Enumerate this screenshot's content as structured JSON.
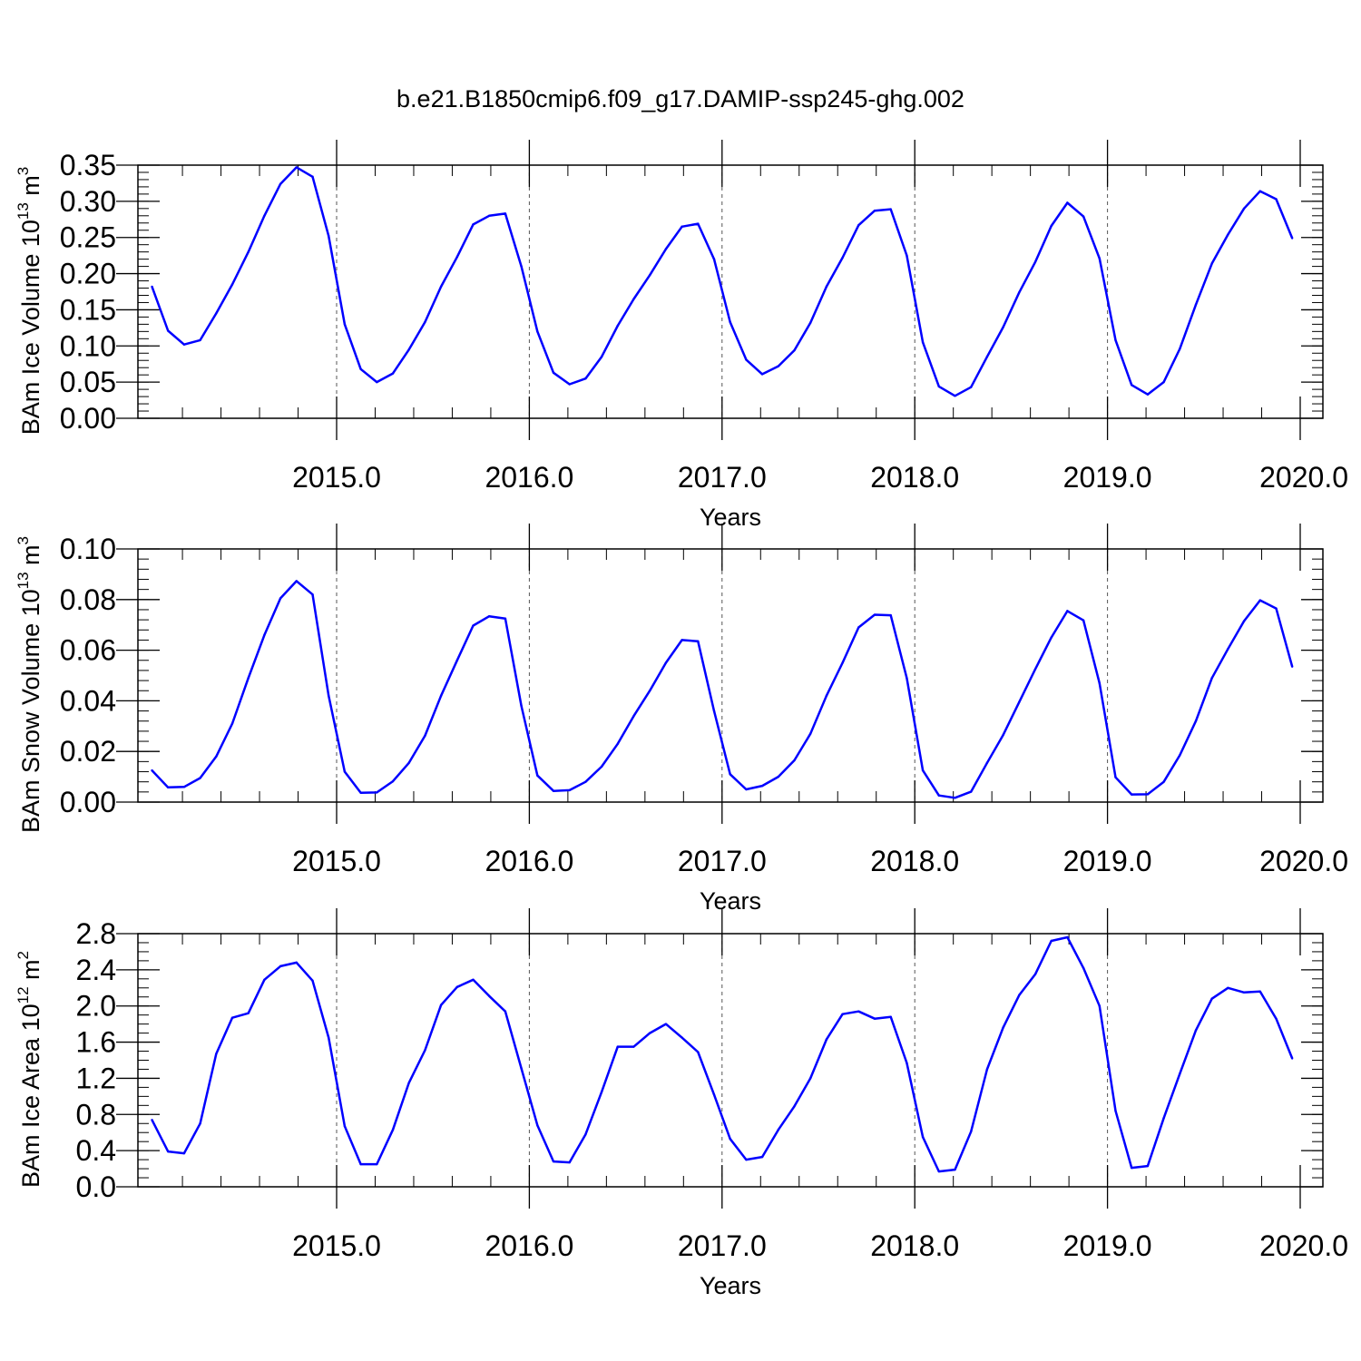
{
  "title": "b.e21.B1850cmip6.f09_g17.DAMIP-ssp245-ghg.002",
  "colors": {
    "series": "#0000ff",
    "axes": "#000000"
  },
  "chart_data": [
    {
      "type": "line",
      "ylabel_main": "BAm Ice Volume 10",
      "ylabel_exp": "13",
      "ylabel_unit": "m",
      "ylabel_unit_exp": "3",
      "xlabel": "Years",
      "xlim": [
        2014.04,
        2020.0
      ],
      "ylim": [
        0.0,
        0.35
      ],
      "yticks": [
        0.0,
        0.05,
        0.1,
        0.15,
        0.2,
        0.25,
        0.3,
        0.35
      ],
      "ytick_labels": [
        "0.00",
        "0.05",
        "0.10",
        "0.15",
        "0.20",
        "0.25",
        "0.30",
        "0.35"
      ],
      "yminor_step": 0.01,
      "xticks": [
        2015,
        2016,
        2017,
        2018,
        2019,
        2020
      ],
      "xtick_labels": [
        "2015.0",
        "2016.0",
        "2017.0",
        "2018.0",
        "2019.0",
        "2020.0"
      ],
      "grid": "vertical-dashed",
      "x_start": 2014.042,
      "x_step": 0.08333,
      "values": [
        0.182,
        0.121,
        0.102,
        0.108,
        0.145,
        0.185,
        0.23,
        0.28,
        0.324,
        0.347,
        0.334,
        0.252,
        0.13,
        0.068,
        0.05,
        0.062,
        0.095,
        0.133,
        0.182,
        0.223,
        0.268,
        0.28,
        0.283,
        0.21,
        0.12,
        0.063,
        0.047,
        0.055,
        0.085,
        0.128,
        0.165,
        0.198,
        0.234,
        0.265,
        0.269,
        0.22,
        0.133,
        0.081,
        0.061,
        0.072,
        0.094,
        0.132,
        0.182,
        0.222,
        0.267,
        0.287,
        0.289,
        0.225,
        0.105,
        0.044,
        0.031,
        0.043,
        0.085,
        0.126,
        0.174,
        0.216,
        0.266,
        0.298,
        0.279,
        0.221,
        0.108,
        0.046,
        0.033,
        0.05,
        0.096,
        0.157,
        0.214,
        0.254,
        0.29,
        0.314,
        0.303,
        0.249
      ]
    },
    {
      "type": "line",
      "ylabel_main": "BAm Snow Volume 10",
      "ylabel_exp": "13",
      "ylabel_unit": "m",
      "ylabel_unit_exp": "3",
      "xlabel": "Years",
      "xlim": [
        2014.04,
        2020.0
      ],
      "ylim": [
        0.0,
        0.1
      ],
      "yticks": [
        0.0,
        0.02,
        0.04,
        0.06,
        0.08,
        0.1
      ],
      "ytick_labels": [
        "0.00",
        "0.02",
        "0.04",
        "0.06",
        "0.08",
        "0.10"
      ],
      "yminor_step": 0.004,
      "xticks": [
        2015,
        2016,
        2017,
        2018,
        2019,
        2020
      ],
      "xtick_labels": [
        "2015.0",
        "2016.0",
        "2017.0",
        "2018.0",
        "2019.0",
        "2020.0"
      ],
      "grid": "vertical-dashed",
      "x_start": 2014.042,
      "x_step": 0.08333,
      "values": [
        0.0125,
        0.0058,
        0.006,
        0.0095,
        0.018,
        0.031,
        0.049,
        0.066,
        0.0805,
        0.0873,
        0.082,
        0.042,
        0.012,
        0.0037,
        0.0038,
        0.0082,
        0.0155,
        0.0262,
        0.042,
        0.056,
        0.0697,
        0.0734,
        0.0725,
        0.038,
        0.0105,
        0.0044,
        0.0047,
        0.008,
        0.014,
        0.023,
        0.034,
        0.044,
        0.055,
        0.064,
        0.0635,
        0.036,
        0.011,
        0.005,
        0.0064,
        0.01,
        0.0165,
        0.027,
        0.042,
        0.055,
        0.069,
        0.074,
        0.0738,
        0.049,
        0.0125,
        0.0026,
        0.0017,
        0.0041,
        0.0155,
        0.0265,
        0.0395,
        0.0525,
        0.065,
        0.0755,
        0.0718,
        0.047,
        0.0098,
        0.003,
        0.0031,
        0.008,
        0.0185,
        0.032,
        0.049,
        0.0605,
        0.0715,
        0.0797,
        0.0765,
        0.0535
      ]
    },
    {
      "type": "line",
      "ylabel_main": "BAm Ice Area 10",
      "ylabel_exp": "12",
      "ylabel_unit": "m",
      "ylabel_unit_exp": "2",
      "xlabel": "Years",
      "xlim": [
        2014.04,
        2020.0
      ],
      "ylim": [
        0.0,
        2.8
      ],
      "yticks": [
        0.0,
        0.4,
        0.8,
        1.2,
        1.6,
        2.0,
        2.4,
        2.8
      ],
      "ytick_labels": [
        "0.0",
        "0.4",
        "0.8",
        "1.2",
        "1.6",
        "2.0",
        "2.4",
        "2.8"
      ],
      "yminor_step": 0.1,
      "xticks": [
        2015,
        2016,
        2017,
        2018,
        2019,
        2020
      ],
      "xtick_labels": [
        "2015.0",
        "2016.0",
        "2017.0",
        "2018.0",
        "2019.0",
        "2020.0"
      ],
      "grid": "vertical-dashed",
      "x_start": 2014.042,
      "x_step": 0.08333,
      "values": [
        0.74,
        0.39,
        0.37,
        0.7,
        1.47,
        1.87,
        1.92,
        2.29,
        2.44,
        2.48,
        2.28,
        1.65,
        0.67,
        0.25,
        0.25,
        0.63,
        1.15,
        1.51,
        2.01,
        2.21,
        2.29,
        2.11,
        1.94,
        1.31,
        0.68,
        0.28,
        0.27,
        0.58,
        1.05,
        1.55,
        1.55,
        1.7,
        1.8,
        1.65,
        1.49,
        1.02,
        0.53,
        0.3,
        0.33,
        0.63,
        0.89,
        1.2,
        1.63,
        1.91,
        1.94,
        1.86,
        1.88,
        1.37,
        0.55,
        0.17,
        0.19,
        0.61,
        1.3,
        1.76,
        2.12,
        2.35,
        2.72,
        2.76,
        2.42,
        2.0,
        0.84,
        0.21,
        0.23,
        0.76,
        1.25,
        1.73,
        2.08,
        2.2,
        2.15,
        2.16,
        1.86,
        1.42
      ]
    }
  ]
}
